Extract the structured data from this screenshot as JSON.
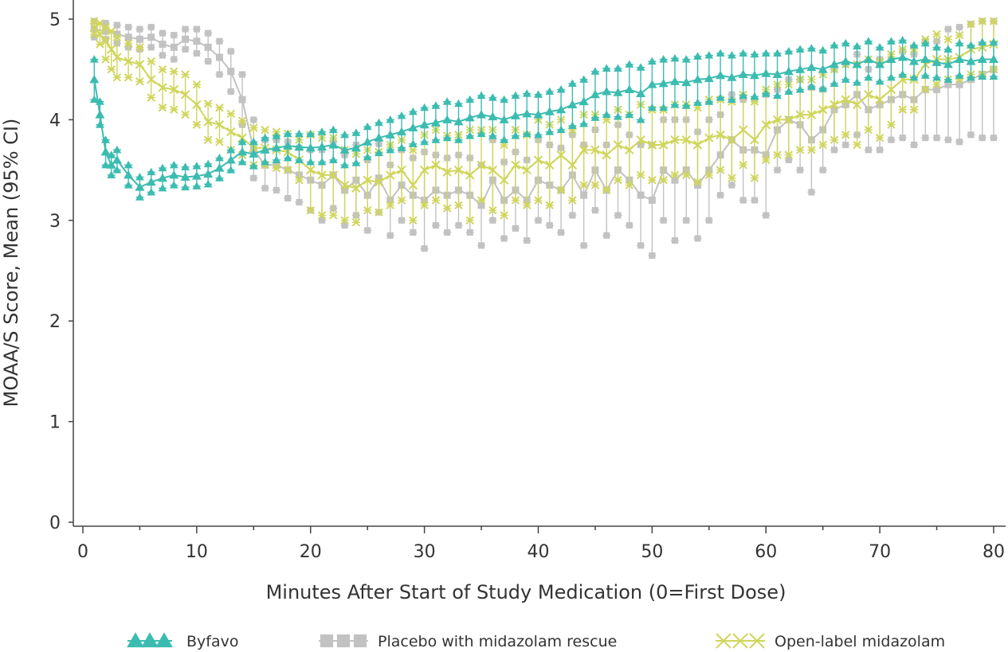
{
  "chart_data": {
    "type": "line",
    "title": "",
    "xlabel": "Minutes After Start of Study Medication (0=First Dose)",
    "ylabel": "MOAA/S Score, Mean (95% CI)",
    "xlim": [
      0,
      80
    ],
    "ylim": [
      0,
      5
    ],
    "xticks": [
      0,
      10,
      20,
      30,
      40,
      50,
      60,
      70,
      80
    ],
    "yticks": [
      0,
      1,
      2,
      3,
      4,
      5
    ],
    "grid": false,
    "legend_position": "bottom",
    "series": [
      {
        "name": "Byfavo",
        "color": "#3bbcb0",
        "marker": "triangle",
        "x": [
          1,
          1.5,
          2,
          2.5,
          3,
          4,
          5,
          6,
          7,
          8,
          9,
          10,
          11,
          12,
          13,
          14,
          15,
          16,
          17,
          18,
          19,
          20,
          21,
          22,
          23,
          24,
          25,
          26,
          27,
          28,
          29,
          30,
          31,
          32,
          33,
          34,
          35,
          36,
          37,
          38,
          39,
          40,
          41,
          42,
          43,
          44,
          45,
          46,
          47,
          48,
          49,
          50,
          51,
          52,
          53,
          54,
          55,
          56,
          57,
          58,
          59,
          60,
          61,
          62,
          63,
          64,
          65,
          66,
          67,
          68,
          69,
          70,
          71,
          72,
          73,
          74,
          75,
          76,
          77,
          78,
          79,
          80
        ],
        "mean": [
          4.4,
          4.05,
          3.68,
          3.55,
          3.6,
          3.45,
          3.33,
          3.38,
          3.42,
          3.45,
          3.43,
          3.44,
          3.46,
          3.52,
          3.6,
          3.68,
          3.66,
          3.7,
          3.72,
          3.74,
          3.73,
          3.72,
          3.73,
          3.75,
          3.7,
          3.72,
          3.78,
          3.82,
          3.85,
          3.88,
          3.92,
          3.95,
          3.97,
          4.0,
          3.98,
          4.02,
          4.05,
          4.03,
          4.0,
          4.04,
          4.06,
          4.05,
          4.08,
          4.1,
          4.15,
          4.18,
          4.25,
          4.28,
          4.27,
          4.3,
          4.26,
          4.35,
          4.36,
          4.38,
          4.37,
          4.4,
          4.41,
          4.44,
          4.42,
          4.45,
          4.44,
          4.46,
          4.45,
          4.48,
          4.5,
          4.52,
          4.5,
          4.55,
          4.58,
          4.55,
          4.6,
          4.55,
          4.6,
          4.62,
          4.58,
          4.6,
          4.57,
          4.55,
          4.6,
          4.58,
          4.6,
          4.6
        ],
        "ci_low": [
          4.2,
          3.95,
          3.55,
          3.45,
          3.5,
          3.35,
          3.23,
          3.28,
          3.32,
          3.35,
          3.33,
          3.34,
          3.36,
          3.42,
          3.5,
          3.58,
          3.54,
          3.58,
          3.6,
          3.62,
          3.6,
          3.58,
          3.58,
          3.6,
          3.55,
          3.57,
          3.63,
          3.67,
          3.7,
          3.72,
          3.76,
          3.78,
          3.8,
          3.82,
          3.8,
          3.84,
          3.86,
          3.84,
          3.8,
          3.84,
          3.86,
          3.85,
          3.88,
          3.9,
          3.94,
          3.96,
          4.02,
          4.05,
          4.03,
          4.05,
          4.0,
          4.12,
          4.12,
          4.15,
          4.14,
          4.17,
          4.18,
          4.22,
          4.2,
          4.24,
          4.23,
          4.26,
          4.24,
          4.28,
          4.3,
          4.33,
          4.31,
          4.36,
          4.4,
          4.37,
          4.42,
          4.38,
          4.42,
          4.45,
          4.42,
          4.44,
          4.42,
          4.4,
          4.44,
          4.42,
          4.43,
          4.43
        ],
        "ci_high": [
          4.6,
          4.18,
          3.8,
          3.65,
          3.7,
          3.55,
          3.43,
          3.48,
          3.52,
          3.55,
          3.53,
          3.54,
          3.56,
          3.62,
          3.7,
          3.78,
          3.78,
          3.82,
          3.84,
          3.86,
          3.86,
          3.86,
          3.88,
          3.9,
          3.85,
          3.87,
          3.93,
          3.97,
          4.0,
          4.04,
          4.08,
          4.12,
          4.14,
          4.18,
          4.16,
          4.2,
          4.24,
          4.22,
          4.2,
          4.24,
          4.26,
          4.25,
          4.28,
          4.3,
          4.36,
          4.4,
          4.48,
          4.51,
          4.51,
          4.55,
          4.52,
          4.58,
          4.6,
          4.61,
          4.6,
          4.63,
          4.64,
          4.66,
          4.64,
          4.66,
          4.65,
          4.66,
          4.66,
          4.68,
          4.7,
          4.71,
          4.69,
          4.74,
          4.76,
          4.73,
          4.78,
          4.72,
          4.78,
          4.79,
          4.74,
          4.76,
          4.72,
          4.7,
          4.76,
          4.74,
          4.77,
          4.77
        ]
      },
      {
        "name": "Placebo with midazolam rescue",
        "color": "#c2c2c2",
        "marker": "square",
        "x": [
          1,
          2,
          3,
          4,
          5,
          6,
          7,
          8,
          9,
          10,
          11,
          12,
          13,
          14,
          15,
          16,
          17,
          18,
          19,
          20,
          21,
          22,
          23,
          24,
          25,
          26,
          27,
          28,
          29,
          30,
          31,
          32,
          33,
          34,
          35,
          36,
          37,
          38,
          39,
          40,
          41,
          42,
          43,
          44,
          45,
          46,
          47,
          48,
          49,
          50,
          51,
          52,
          53,
          54,
          55,
          56,
          57,
          58,
          59,
          60,
          61,
          62,
          63,
          64,
          65,
          66,
          67,
          68,
          69,
          70,
          71,
          72,
          73,
          74,
          75,
          76,
          77,
          78,
          79,
          80
        ],
        "mean": [
          4.9,
          4.88,
          4.85,
          4.82,
          4.8,
          4.82,
          4.75,
          4.72,
          4.8,
          4.78,
          4.72,
          4.62,
          4.48,
          4.2,
          3.7,
          3.55,
          3.55,
          3.5,
          3.45,
          3.4,
          3.35,
          3.45,
          3.3,
          3.4,
          3.25,
          3.42,
          3.2,
          3.35,
          3.25,
          3.2,
          3.3,
          3.25,
          3.3,
          3.25,
          3.15,
          3.4,
          3.2,
          3.3,
          3.2,
          3.4,
          3.35,
          3.3,
          3.45,
          3.25,
          3.5,
          3.3,
          3.5,
          3.4,
          3.25,
          3.2,
          3.5,
          3.4,
          3.5,
          3.35,
          3.5,
          3.65,
          3.8,
          3.7,
          3.7,
          3.65,
          3.9,
          4.0,
          3.95,
          3.8,
          3.9,
          4.1,
          4.15,
          4.25,
          4.1,
          4.15,
          4.2,
          4.25,
          4.2,
          4.3,
          4.3,
          4.35,
          4.35,
          4.4,
          4.45,
          4.5
        ],
        "ci_low": [
          4.82,
          4.8,
          4.76,
          4.72,
          4.7,
          4.72,
          4.64,
          4.6,
          4.7,
          4.66,
          4.58,
          4.45,
          4.28,
          3.95,
          3.42,
          3.32,
          3.3,
          3.22,
          3.18,
          3.1,
          3.0,
          3.12,
          2.95,
          3.05,
          2.9,
          3.08,
          2.85,
          3.0,
          2.88,
          2.72,
          2.95,
          2.88,
          2.95,
          2.88,
          2.75,
          3.0,
          2.82,
          2.92,
          2.8,
          3.0,
          2.95,
          2.88,
          3.05,
          2.75,
          3.1,
          2.85,
          3.05,
          2.95,
          2.75,
          2.65,
          3.0,
          2.8,
          3.0,
          2.82,
          3.0,
          3.25,
          3.35,
          3.2,
          3.2,
          3.05,
          3.5,
          3.6,
          3.5,
          3.28,
          3.5,
          3.7,
          3.75,
          3.85,
          3.7,
          3.7,
          3.8,
          3.82,
          3.75,
          3.82,
          3.82,
          3.8,
          3.78,
          3.85,
          3.82,
          3.82
        ],
        "ci_high": [
          4.98,
          4.96,
          4.94,
          4.92,
          4.9,
          4.92,
          4.86,
          4.84,
          4.9,
          4.9,
          4.86,
          4.78,
          4.68,
          4.45,
          4.0,
          3.8,
          3.8,
          3.78,
          3.72,
          3.7,
          3.7,
          3.78,
          3.65,
          3.75,
          3.6,
          3.76,
          3.55,
          3.7,
          3.62,
          3.68,
          3.65,
          3.62,
          3.65,
          3.62,
          3.55,
          3.8,
          3.58,
          3.68,
          3.6,
          3.8,
          3.75,
          3.72,
          3.85,
          3.75,
          3.9,
          3.75,
          3.95,
          3.85,
          3.75,
          3.75,
          4.0,
          4.0,
          4.0,
          3.88,
          4.0,
          4.05,
          4.25,
          4.2,
          4.2,
          4.25,
          4.3,
          4.4,
          4.4,
          4.32,
          4.3,
          4.5,
          4.55,
          4.65,
          4.5,
          4.6,
          4.6,
          4.68,
          4.65,
          4.78,
          4.78,
          4.9,
          4.92,
          4.95,
          4.98,
          4.98
        ]
      },
      {
        "name": "Open-label midazolam",
        "color": "#cfd65a",
        "marker": "x",
        "x": [
          1,
          1.5,
          2,
          2.5,
          3,
          4,
          5,
          6,
          7,
          8,
          9,
          10,
          11,
          12,
          13,
          14,
          15,
          16,
          17,
          18,
          19,
          20,
          21,
          22,
          23,
          24,
          25,
          26,
          27,
          28,
          29,
          30,
          31,
          32,
          33,
          34,
          35,
          36,
          37,
          38,
          39,
          40,
          41,
          42,
          43,
          44,
          45,
          46,
          47,
          48,
          49,
          50,
          51,
          52,
          53,
          54,
          55,
          56,
          57,
          58,
          59,
          60,
          61,
          62,
          63,
          64,
          65,
          66,
          67,
          68,
          69,
          70,
          71,
          72,
          73,
          74,
          75,
          76,
          77,
          78,
          79,
          80
        ],
        "mean": [
          4.92,
          4.85,
          4.78,
          4.7,
          4.62,
          4.58,
          4.55,
          4.4,
          4.32,
          4.3,
          4.25,
          4.15,
          3.98,
          3.95,
          3.88,
          3.82,
          3.72,
          3.72,
          3.7,
          3.68,
          3.6,
          3.5,
          3.45,
          3.45,
          3.35,
          3.32,
          3.4,
          3.38,
          3.45,
          3.5,
          3.35,
          3.5,
          3.55,
          3.48,
          3.5,
          3.45,
          3.55,
          3.5,
          3.4,
          3.55,
          3.5,
          3.6,
          3.55,
          3.65,
          3.55,
          3.7,
          3.7,
          3.65,
          3.75,
          3.7,
          3.8,
          3.75,
          3.75,
          3.8,
          3.8,
          3.75,
          3.82,
          3.85,
          3.8,
          3.9,
          3.8,
          3.95,
          4.0,
          4.0,
          4.05,
          4.05,
          4.1,
          4.15,
          4.2,
          4.15,
          4.25,
          4.2,
          4.3,
          4.4,
          4.4,
          4.55,
          4.6,
          4.6,
          4.62,
          4.7,
          4.72,
          4.75
        ],
        "ci_low": [
          4.85,
          4.75,
          4.6,
          4.5,
          4.42,
          4.42,
          4.38,
          4.22,
          4.12,
          4.1,
          4.05,
          3.95,
          3.8,
          3.78,
          3.7,
          3.65,
          3.55,
          3.55,
          3.52,
          3.5,
          3.4,
          3.1,
          3.05,
          3.05,
          3.0,
          2.98,
          3.1,
          3.08,
          3.15,
          3.2,
          3.0,
          3.15,
          3.2,
          3.12,
          3.15,
          3.0,
          3.2,
          3.1,
          3.05,
          3.2,
          3.15,
          3.2,
          3.15,
          3.3,
          3.2,
          3.35,
          3.35,
          3.3,
          3.4,
          3.35,
          3.45,
          3.4,
          3.4,
          3.45,
          3.45,
          3.38,
          3.45,
          3.5,
          3.42,
          3.55,
          3.42,
          3.6,
          3.65,
          3.65,
          3.7,
          3.7,
          3.75,
          3.8,
          3.85,
          3.75,
          3.9,
          3.82,
          3.95,
          4.1,
          4.1,
          4.3,
          4.35,
          4.4,
          4.4,
          4.45,
          4.45,
          4.5
        ],
        "ci_high": [
          4.98,
          4.96,
          4.92,
          4.88,
          4.82,
          4.76,
          4.72,
          4.58,
          4.5,
          4.48,
          4.45,
          4.35,
          4.16,
          4.12,
          4.06,
          3.99,
          3.92,
          3.9,
          3.88,
          3.86,
          3.8,
          3.85,
          3.82,
          3.82,
          3.7,
          3.66,
          3.7,
          3.68,
          3.75,
          3.8,
          3.7,
          3.85,
          3.9,
          3.84,
          3.85,
          3.9,
          3.9,
          3.9,
          3.75,
          3.9,
          3.85,
          4.0,
          3.95,
          4.0,
          3.9,
          4.05,
          4.05,
          4.0,
          4.1,
          4.05,
          4.15,
          4.1,
          4.1,
          4.15,
          4.15,
          4.12,
          4.2,
          4.2,
          4.18,
          4.25,
          4.18,
          4.3,
          4.35,
          4.35,
          4.4,
          4.4,
          4.45,
          4.5,
          4.55,
          4.55,
          4.6,
          4.58,
          4.65,
          4.7,
          4.7,
          4.8,
          4.85,
          4.8,
          4.84,
          4.95,
          4.98,
          4.98
        ]
      }
    ]
  }
}
